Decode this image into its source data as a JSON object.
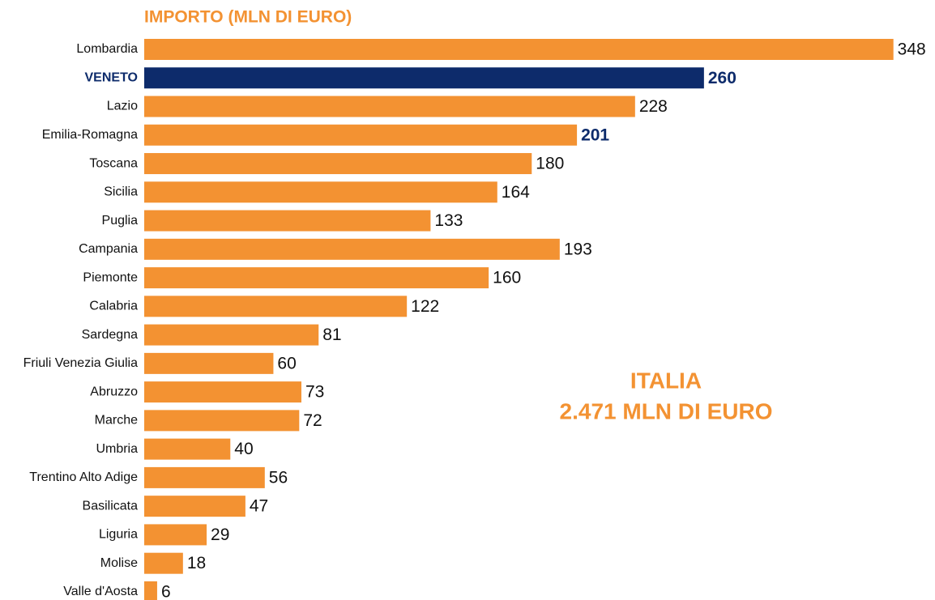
{
  "chart_data": {
    "type": "bar",
    "orientation": "horizontal",
    "title": "IMPORTO (MLN DI EURO)",
    "annotations": [
      "ITALIA",
      "2.471 MLN DI EURO"
    ],
    "categories": [
      "Lombardia",
      "VENETO",
      "Lazio",
      "Emilia-Romagna",
      "Toscana",
      "Sicilia",
      "Puglia",
      "Campania",
      "Piemonte",
      "Calabria",
      "Sardegna",
      "Friuli Venezia Giulia",
      "Abruzzo",
      "Marche",
      "Umbria",
      "Trentino Alto Adige",
      "Basilicata",
      "Liguria",
      "Molise",
      "Valle d'Aosta"
    ],
    "values": [
      348,
      260,
      228,
      201,
      180,
      164,
      133,
      193,
      160,
      122,
      81,
      60,
      73,
      72,
      40,
      56,
      47,
      29,
      18,
      6
    ],
    "color": "#f39232",
    "colors": [
      "#f39232",
      "#0d2b6b",
      "#f39232",
      "#f39232",
      "#f39232",
      "#f39232",
      "#f39232",
      "#f39232",
      "#f39232",
      "#f39232",
      "#f39232",
      "#f39232",
      "#f39232",
      "#f39232",
      "#f39232",
      "#f39232",
      "#f39232",
      "#f39232",
      "#f39232",
      "#f39232"
    ],
    "value_label_colors": [
      "#111111",
      "#0d2b6b",
      "#111111",
      "#0d2b6b",
      "#111111",
      "#111111",
      "#111111",
      "#111111",
      "#111111",
      "#111111",
      "#111111",
      "#111111",
      "#111111",
      "#111111",
      "#111111",
      "#111111",
      "#111111",
      "#111111",
      "#111111",
      "#111111"
    ],
    "xlim": [
      0,
      350
    ]
  }
}
